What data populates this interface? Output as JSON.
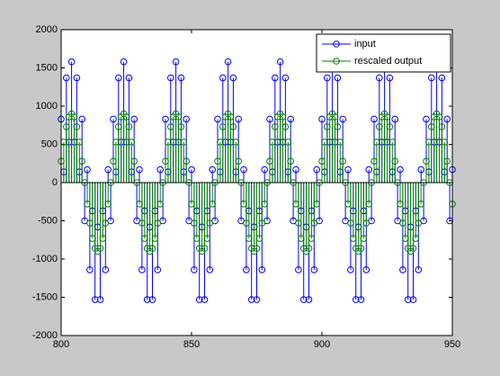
{
  "chart_data": {
    "type": "stem",
    "x": [
      800,
      801,
      802,
      803,
      804,
      805,
      806,
      807,
      808,
      809,
      810,
      811,
      812,
      813,
      814,
      815,
      816,
      817,
      818,
      819,
      820,
      821,
      822,
      823,
      824,
      825,
      826,
      827,
      828,
      829,
      830,
      831,
      832,
      833,
      834,
      835,
      836,
      837,
      838,
      839,
      840,
      841,
      842,
      843,
      844,
      845,
      846,
      847,
      848,
      849,
      850,
      851,
      852,
      853,
      854,
      855,
      856,
      857,
      858,
      859,
      860,
      861,
      862,
      863,
      864,
      865,
      866,
      867,
      868,
      869,
      870,
      871,
      872,
      873,
      874,
      875,
      876,
      877,
      878,
      879,
      880,
      881,
      882,
      883,
      884,
      885,
      886,
      887,
      888,
      889,
      890,
      891,
      892,
      893,
      894,
      895,
      896,
      897,
      898,
      899,
      900,
      901,
      902,
      903,
      904,
      905,
      906,
      907,
      908,
      909,
      910,
      911,
      912,
      913,
      914,
      915,
      916,
      917,
      918,
      919,
      920,
      921,
      922,
      923,
      924,
      925,
      926,
      927,
      928,
      929,
      930,
      931,
      932,
      933,
      934,
      935,
      936,
      937,
      938,
      939,
      940,
      941,
      942,
      943,
      944,
      945,
      946,
      947,
      948,
      949,
      950
    ],
    "series": [
      {
        "name": "input",
        "color": "#0000ff",
        "values": [
          830,
          140,
          1370,
          530,
          1580,
          530,
          1370,
          140,
          830,
          -500,
          170,
          -1140,
          -370,
          -1530,
          -580,
          -1530,
          -370,
          -1140,
          170,
          -500,
          830,
          140,
          1370,
          530,
          1580,
          530,
          1370,
          140,
          830,
          -500,
          170,
          -1140,
          -370,
          -1530,
          -580,
          -1530,
          -370,
          -1140,
          170,
          -500,
          830,
          140,
          1370,
          530,
          1580,
          530,
          1370,
          140,
          830,
          -500,
          170,
          -1140,
          -370,
          -1530,
          -580,
          -1530,
          -370,
          -1140,
          170,
          -500,
          830,
          140,
          1370,
          530,
          1580,
          530,
          1370,
          140,
          830,
          -500,
          170,
          -1140,
          -370,
          -1530,
          -580,
          -1530,
          -370,
          -1140,
          170,
          -500,
          830,
          140,
          1370,
          530,
          1580,
          530,
          1370,
          140,
          830,
          -500,
          170,
          -1140,
          -370,
          -1530,
          -580,
          -1530,
          -370,
          -1140,
          170,
          -500,
          830,
          140,
          1370,
          530,
          1580,
          530,
          1370,
          140,
          830,
          -500,
          170,
          -1140,
          -370,
          -1530,
          -580,
          -1530,
          -370,
          -1140,
          170,
          -500,
          830,
          140,
          1370,
          530,
          1580,
          530,
          1370,
          140,
          830,
          -500,
          170,
          -1140,
          -370,
          -1530,
          -580,
          -1530,
          -370,
          -1140,
          170,
          -500,
          830,
          140,
          1370,
          530,
          1580,
          530,
          1370,
          140,
          830,
          -500,
          170
        ]
      },
      {
        "name": "rescaled output",
        "color": "#008000",
        "values": [
          280,
          530,
          730,
          860,
          900,
          860,
          730,
          530,
          280,
          0,
          -280,
          -530,
          -730,
          -860,
          -900,
          -860,
          -730,
          -530,
          -280,
          0,
          280,
          530,
          730,
          860,
          900,
          860,
          730,
          530,
          280,
          0,
          -280,
          -530,
          -730,
          -860,
          -900,
          -860,
          -730,
          -530,
          -280,
          0,
          280,
          530,
          730,
          860,
          900,
          860,
          730,
          530,
          280,
          0,
          -280,
          -530,
          -730,
          -860,
          -900,
          -860,
          -730,
          -530,
          -280,
          0,
          280,
          530,
          730,
          860,
          900,
          860,
          730,
          530,
          280,
          0,
          -280,
          -530,
          -730,
          -860,
          -900,
          -860,
          -730,
          -530,
          -280,
          0,
          280,
          530,
          730,
          860,
          900,
          860,
          730,
          530,
          280,
          0,
          -280,
          -530,
          -730,
          -860,
          -900,
          -860,
          -730,
          -530,
          -280,
          0,
          280,
          530,
          730,
          860,
          900,
          860,
          730,
          530,
          280,
          0,
          -280,
          -530,
          -730,
          -860,
          -900,
          -860,
          -730,
          -530,
          -280,
          0,
          280,
          530,
          730,
          860,
          900,
          860,
          730,
          530,
          280,
          0,
          -280,
          -530,
          -730,
          -860,
          -900,
          -860,
          -730,
          -530,
          -280,
          0,
          280,
          530,
          730,
          860,
          900,
          860,
          730,
          530,
          280,
          0,
          -280
        ]
      }
    ],
    "xlim": [
      800,
      950
    ],
    "xticks": [
      800,
      850,
      900,
      950
    ],
    "ylim": [
      -2000,
      2000
    ],
    "yticks": [
      -2000,
      -1500,
      -1000,
      -500,
      0,
      500,
      1000,
      1500,
      2000
    ],
    "grid": false,
    "legend": "upper-right"
  }
}
